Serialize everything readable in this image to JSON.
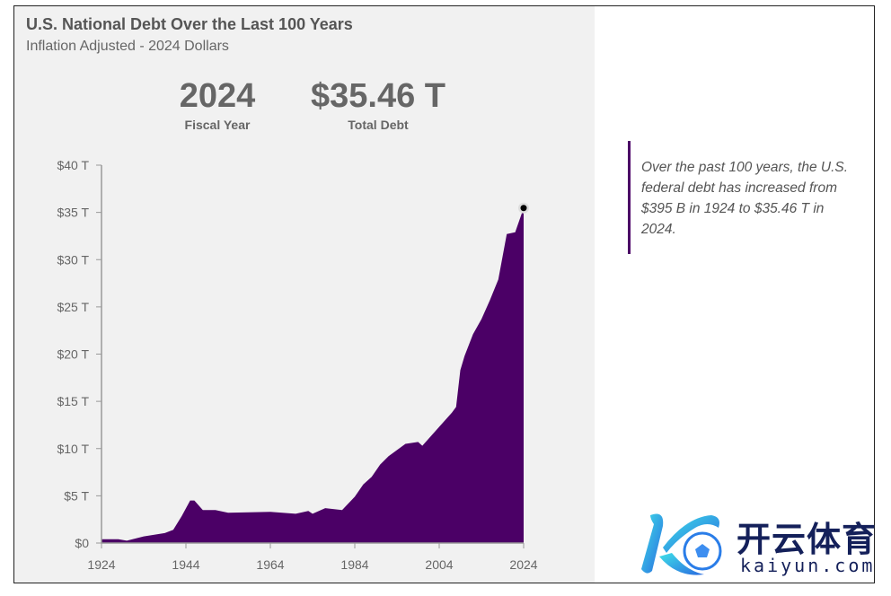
{
  "header": {
    "title": "U.S. National Debt Over the Last 100 Years",
    "subtitle": "Inflation Adjusted - 2024 Dollars"
  },
  "stats": [
    {
      "value": "2024",
      "label": "Fiscal Year"
    },
    {
      "value": "$35.46 T",
      "label": "Total Debt"
    }
  ],
  "note": "Over the past 100 years, the U.S. federal debt has increased from $395 B in 1924 to $35.46 T in 2024.",
  "logo": {
    "cn": "开云体育",
    "en": "kaiyun.com"
  },
  "colors": {
    "area": "#4b0066",
    "panel": "#f1f1f1",
    "marker": "#000000"
  },
  "chart_data": {
    "type": "area",
    "title": "U.S. National Debt Over the Last 100 Years",
    "xlabel": "Fiscal Year",
    "ylabel": "Total Debt (2024 $)",
    "xlim": [
      1924,
      2024
    ],
    "ylim": [
      0,
      40
    ],
    "x_ticks": [
      1924,
      1944,
      1964,
      1984,
      2004,
      2024
    ],
    "x_tick_labels": [
      "1924",
      "1944",
      "1964",
      "1984",
      "2004",
      "2024"
    ],
    "y_ticks": [
      0,
      5,
      10,
      15,
      20,
      25,
      30,
      35,
      40
    ],
    "y_tick_labels": [
      "$0",
      "$5 T",
      "$10 T",
      "$15 T",
      "$20 T",
      "$25 T",
      "$30 T",
      "$35 T",
      "$40 T"
    ],
    "units": "trillions USD",
    "x": [
      1924,
      1928,
      1930,
      1934,
      1939,
      1941,
      1943,
      1945,
      1946,
      1948,
      1951,
      1954,
      1964,
      1970,
      1973,
      1974,
      1977,
      1981,
      1984,
      1986,
      1988,
      1990,
      1992,
      1996,
      1999,
      2000,
      2004,
      2007,
      2008,
      2009,
      2010,
      2012,
      2014,
      2016,
      2018,
      2020,
      2022,
      2024
    ],
    "y": [
      0.4,
      0.4,
      0.25,
      0.7,
      1.05,
      1.4,
      2.85,
      4.5,
      4.5,
      3.5,
      3.5,
      3.2,
      3.3,
      3.1,
      3.4,
      3.1,
      3.7,
      3.5,
      4.9,
      6.2,
      7.0,
      8.3,
      9.2,
      10.5,
      10.7,
      10.3,
      12.3,
      13.8,
      14.4,
      18.3,
      19.8,
      22.1,
      23.7,
      25.7,
      27.9,
      32.7,
      32.9,
      35.46
    ],
    "highlight": {
      "x": 2024,
      "y": 35.46
    }
  }
}
